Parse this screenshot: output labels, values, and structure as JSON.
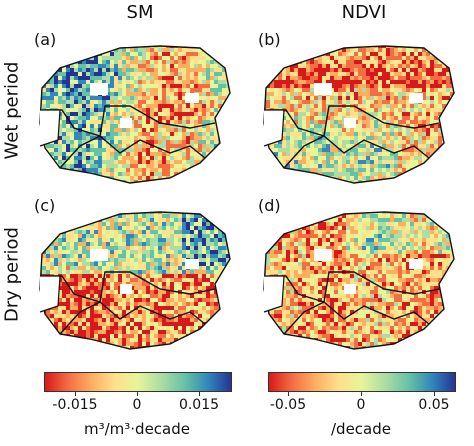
{
  "columns": {
    "sm": "SM",
    "ndvi": "NDVI"
  },
  "rows": {
    "wet": "Wet period",
    "dry": "Dry period"
  },
  "panels": [
    {
      "label": "(a)",
      "variable": "SM",
      "period": "Wet period",
      "dominant_trend": "mixed, mostly wetting (blue/green) in north and center"
    },
    {
      "label": "(b)",
      "variable": "NDVI",
      "period": "Wet period",
      "dominant_trend": "greening (red) in north and east, mixed elsewhere"
    },
    {
      "label": "(c)",
      "variable": "SM",
      "period": "Dry period",
      "dominant_trend": "drying (red/orange) in south and west, wetting in north-east"
    },
    {
      "label": "(d)",
      "variable": "NDVI",
      "period": "Dry period",
      "dominant_trend": "browning (red) widespread"
    }
  ],
  "colorbars": {
    "sm": {
      "ticks": [
        "-0.015",
        "0",
        "0.015"
      ],
      "unit": "m³/m³·decade",
      "min": -0.02,
      "max": 0.02
    },
    "ndvi": {
      "ticks": [
        "-0.05",
        "0",
        "0.05"
      ],
      "unit": "/decade",
      "min": -0.07,
      "max": 0.06
    }
  },
  "palette": [
    "#d7191c",
    "#f46d43",
    "#fdae61",
    "#fee08b",
    "#e6f598",
    "#abdda4",
    "#66c2a5",
    "#3288bd",
    "#253494"
  ]
}
